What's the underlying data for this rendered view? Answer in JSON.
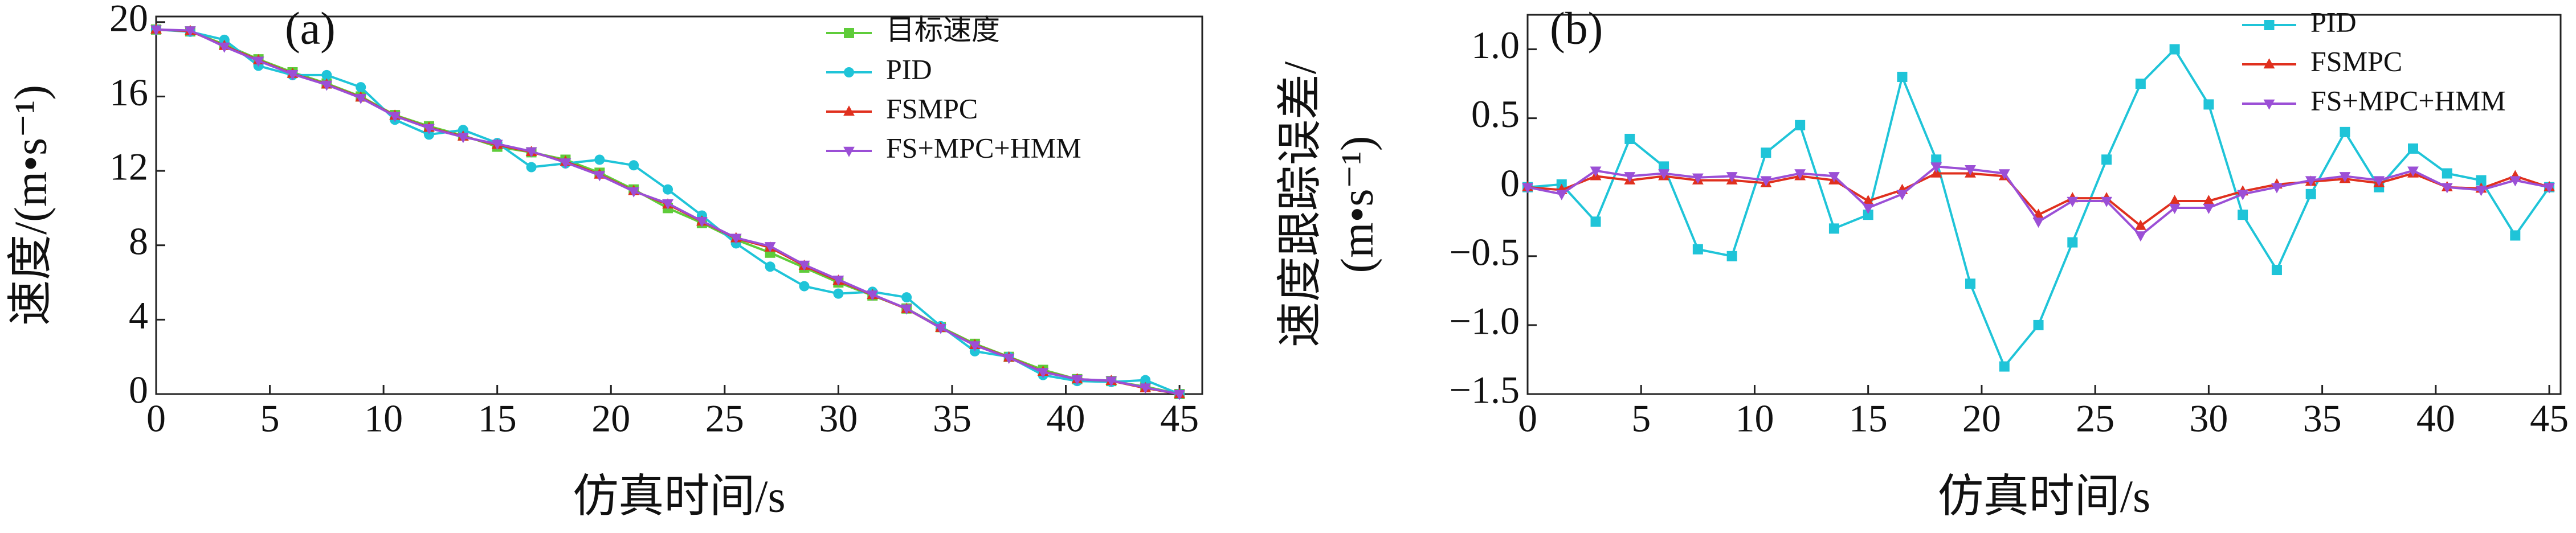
{
  "chart_data": [
    {
      "type": "line",
      "annotation": "(a)",
      "xlabel": "仿真时间/s",
      "ylabel": [
        "速度/(m•s⁻¹)"
      ],
      "xlim": [
        0,
        46
      ],
      "xticks": [
        0,
        5,
        10,
        15,
        20,
        25,
        30,
        35,
        40,
        45
      ],
      "ylim": [
        0,
        20.3
      ],
      "yticks": [
        0,
        4,
        8,
        12,
        16,
        20
      ],
      "legend": "upper right",
      "x": [
        0,
        1.5,
        3,
        4.5,
        6,
        7.5,
        9,
        10.5,
        12,
        13.5,
        15,
        16.5,
        18,
        19.5,
        21,
        22.5,
        24,
        25.5,
        27,
        28.5,
        30,
        31.5,
        33,
        34.5,
        36,
        37.5,
        39,
        40.5,
        42,
        43.5,
        45
      ],
      "series": [
        {
          "name": "目标速度",
          "color": "#5fcc3a",
          "marker": "square",
          "values": [
            19.6,
            19.5,
            18.8,
            18.0,
            17.3,
            16.7,
            16.0,
            15.0,
            14.4,
            13.9,
            13.3,
            13.0,
            12.6,
            11.9,
            11.0,
            10.0,
            9.2,
            8.3,
            7.6,
            6.8,
            6.0,
            5.3,
            4.6,
            3.6,
            2.7,
            2.0,
            1.3,
            0.8,
            0.7,
            0.4,
            0
          ]
        },
        {
          "name": "PID",
          "color": "#1fc4d8",
          "marker": "circle",
          "values": [
            19.6,
            19.48,
            19.05,
            17.65,
            17.15,
            17.15,
            16.5,
            14.75,
            13.95,
            14.2,
            13.5,
            12.2,
            12.4,
            12.6,
            12.3,
            11.0,
            9.6,
            8.1,
            6.85,
            5.8,
            5.4,
            5.5,
            5.2,
            3.65,
            2.3,
            2.0,
            1.02,
            0.7,
            0.65,
            0.75,
            0
          ]
        },
        {
          "name": "FSMPC",
          "color": "#e0301e",
          "marker": "triangle",
          "values": [
            19.6,
            19.52,
            18.72,
            17.95,
            17.22,
            16.65,
            15.95,
            14.97,
            14.32,
            13.85,
            13.4,
            13.02,
            12.5,
            11.8,
            10.92,
            10.2,
            9.28,
            8.38,
            7.88,
            6.9,
            6.1,
            5.33,
            4.58,
            3.56,
            2.64,
            1.97,
            1.2,
            0.8,
            0.71,
            0.32,
            0
          ]
        },
        {
          "name": "FS+MPC+HMM",
          "color": "#9b4fd6",
          "marker": "triangle-down",
          "values": [
            19.6,
            19.55,
            18.68,
            17.92,
            17.2,
            16.63,
            15.92,
            14.95,
            14.3,
            13.82,
            13.45,
            13.05,
            12.45,
            11.77,
            10.9,
            10.25,
            9.3,
            8.4,
            7.95,
            6.95,
            6.15,
            5.35,
            4.6,
            3.55,
            2.62,
            1.95,
            1.18,
            0.8,
            0.72,
            0.35,
            0
          ]
        }
      ]
    },
    {
      "type": "line",
      "annotation": "(b)",
      "xlabel": "仿真时间/s",
      "ylabel": [
        "速度跟踪误差/",
        "(m•s⁻¹)"
      ],
      "xlim": [
        0,
        45.5
      ],
      "xticks": [
        0,
        5,
        10,
        15,
        20,
        25,
        30,
        35,
        40,
        45
      ],
      "ylim": [
        -1.5,
        1.25
      ],
      "yticks": [
        {
          "value": -1.5,
          "label": "−1.5"
        },
        {
          "value": -1.0,
          "label": "−1.0"
        },
        {
          "value": -0.5,
          "label": "−0.5"
        },
        0,
        0.5,
        {
          "value": 1.0,
          "label": "1.0"
        }
      ],
      "legend": "upper right",
      "x": [
        0,
        1.5,
        3,
        4.5,
        6,
        7.5,
        9,
        10.5,
        12,
        13.5,
        15,
        16.5,
        18,
        19.5,
        21,
        22.5,
        24,
        25.5,
        27,
        28.5,
        30,
        31.5,
        33,
        34.5,
        36,
        37.5,
        39,
        40.5,
        42,
        43.5,
        45
      ],
      "series": [
        {
          "name": "PID",
          "color": "#1fc4d8",
          "marker": "square",
          "values": [
            0,
            0.02,
            -0.25,
            0.35,
            0.15,
            -0.45,
            -0.5,
            0.25,
            0.45,
            -0.3,
            -0.2,
            0.8,
            0.2,
            -0.7,
            -1.3,
            -1.0,
            -0.4,
            0.2,
            0.75,
            1.0,
            0.6,
            -0.2,
            -0.6,
            -0.05,
            0.4,
            0.0,
            0.28,
            0.1,
            0.05,
            -0.35,
            0
          ]
        },
        {
          "name": "FSMPC",
          "color": "#e0301e",
          "marker": "triangle",
          "values": [
            0,
            -0.02,
            0.08,
            0.05,
            0.08,
            0.05,
            0.05,
            0.03,
            0.08,
            0.05,
            -0.1,
            -0.02,
            0.1,
            0.1,
            0.08,
            -0.2,
            -0.08,
            -0.08,
            -0.28,
            -0.1,
            -0.1,
            -0.03,
            0.02,
            0.04,
            0.06,
            0.03,
            0.1,
            0.0,
            -0.01,
            0.08,
            0
          ]
        },
        {
          "name": "FS+MPC+HMM",
          "color": "#9b4fd6",
          "marker": "triangle-down",
          "values": [
            0,
            -0.05,
            0.12,
            0.08,
            0.1,
            0.07,
            0.08,
            0.05,
            0.1,
            0.08,
            -0.15,
            -0.05,
            0.15,
            0.13,
            0.1,
            -0.25,
            -0.1,
            -0.1,
            -0.35,
            -0.15,
            -0.15,
            -0.05,
            0.0,
            0.05,
            0.08,
            0.05,
            0.12,
            0.0,
            -0.02,
            0.05,
            0
          ]
        }
      ]
    }
  ]
}
